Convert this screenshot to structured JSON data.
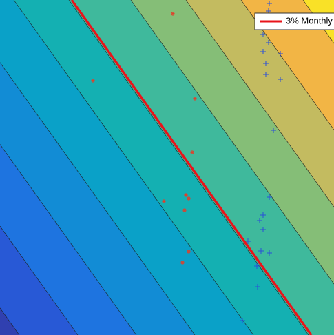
{
  "chart_data": {
    "type": "contour",
    "series": [
      {
        "name": "3% Monthly",
        "color": "#e8141a"
      }
    ]
  }
}
